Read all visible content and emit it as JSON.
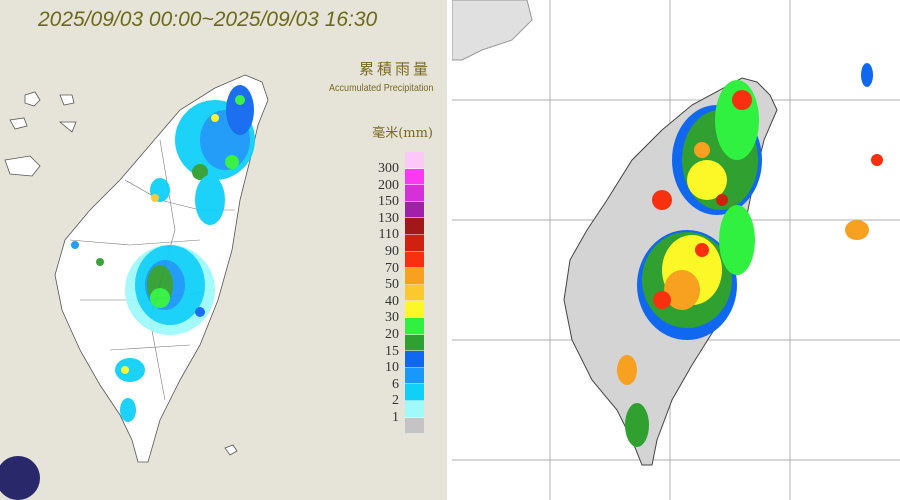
{
  "left_map": {
    "title": "2025/09/03 00:00~2025/09/03 16:30",
    "legend_title_zh": "累積雨量",
    "legend_title_en": "Accumulated Precipitation",
    "legend_unit": "毫米(mm)",
    "legend": [
      {
        "label": "",
        "color": "#fbc8f8"
      },
      {
        "label": "300",
        "color": "#f83af0"
      },
      {
        "label": "200",
        "color": "#d630d8"
      },
      {
        "label": "150",
        "color": "#a020a8"
      },
      {
        "label": "130",
        "color": "#a01818"
      },
      {
        "label": "110",
        "color": "#d02010"
      },
      {
        "label": "90",
        "color": "#f83010"
      },
      {
        "label": "70",
        "color": "#f8a020"
      },
      {
        "label": "50",
        "color": "#fcc830"
      },
      {
        "label": "40",
        "color": "#fcf828"
      },
      {
        "label": "30",
        "color": "#30f040"
      },
      {
        "label": "20",
        "color": "#30a030"
      },
      {
        "label": "15",
        "color": "#1068f0"
      },
      {
        "label": "10",
        "color": "#1898f8"
      },
      {
        "label": "6",
        "color": "#10d0f8"
      },
      {
        "label": "2",
        "color": "#a0fafa"
      },
      {
        "label": "1",
        "color": "#c4c4c4"
      }
    ]
  },
  "right_map": {
    "land_color": "#d4d4d4",
    "grid_color": "#b0b0b0"
  }
}
